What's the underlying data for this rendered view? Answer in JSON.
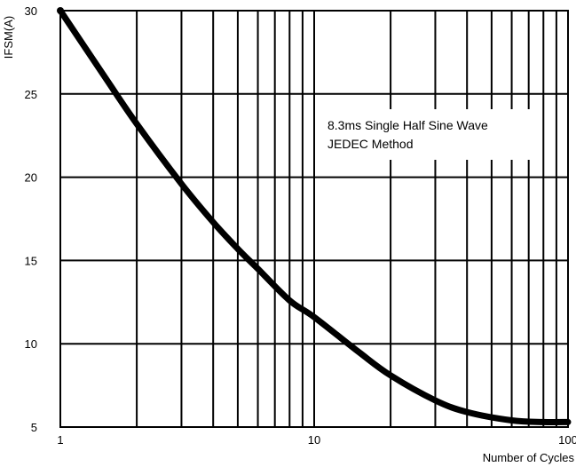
{
  "chart_data": {
    "type": "line",
    "title": "",
    "xlabel": "Number of Cycles",
    "ylabel": "IFSM(A)",
    "x_scale": "log",
    "xlim": [
      1,
      100
    ],
    "ylim": [
      5,
      30
    ],
    "x_ticks": [
      "1",
      "10",
      "100"
    ],
    "y_ticks": [
      "5",
      "10",
      "15",
      "20",
      "25",
      "30"
    ],
    "grid": true,
    "annotation": [
      "8.3ms Single Half Sine Wave",
      "JEDEC Method"
    ],
    "series": [
      {
        "x": [
          1,
          1.5,
          2,
          3,
          4,
          5,
          6,
          8,
          10,
          15,
          20,
          30,
          40,
          60,
          80,
          100
        ],
        "y": [
          30,
          26,
          23.2,
          19.6,
          17.3,
          15.7,
          14.5,
          12.6,
          11.6,
          9.5,
          8.1,
          6.6,
          5.9,
          5.4,
          5.3,
          5.3
        ]
      }
    ]
  }
}
